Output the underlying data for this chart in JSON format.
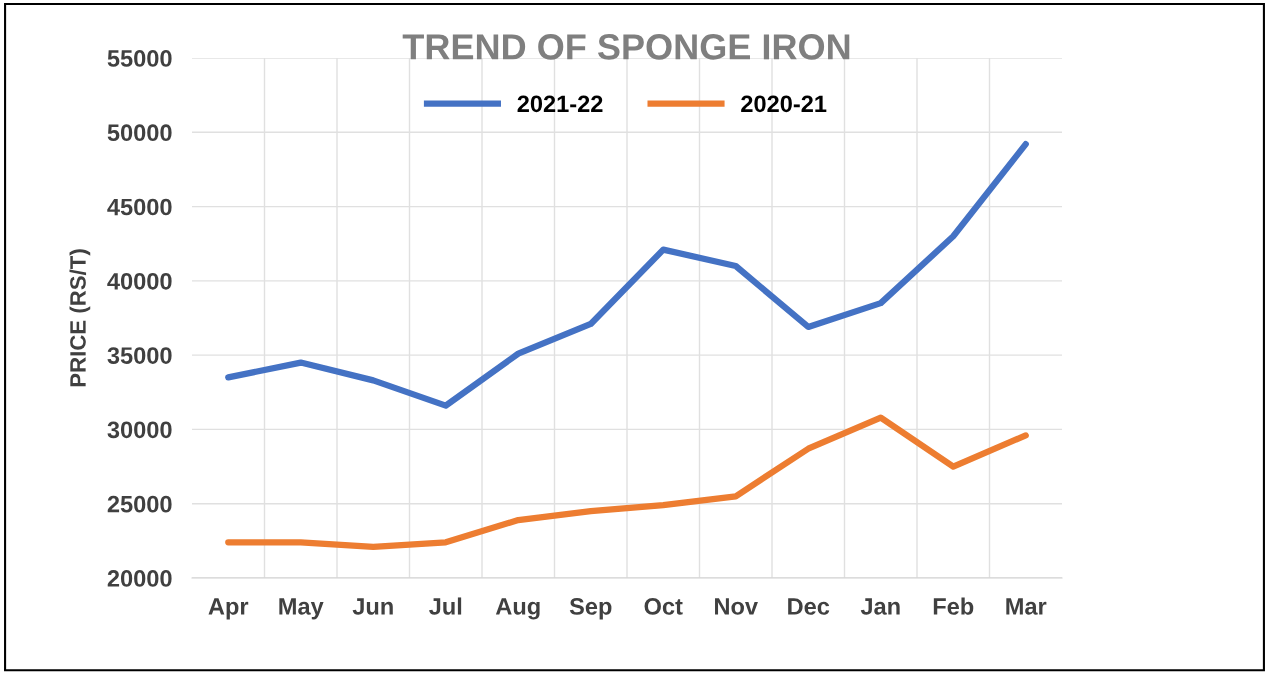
{
  "chart_data": {
    "type": "line",
    "title": "TREND OF SPONGE IRON",
    "ylabel": "PRICE (RS/T)",
    "categories": [
      "Apr",
      "May",
      "Jun",
      "Jul",
      "Aug",
      "Sep",
      "Oct",
      "Nov",
      "Dec",
      "Jan",
      "Feb",
      "Mar"
    ],
    "series": [
      {
        "name": "2021-22",
        "color": "#4472c4",
        "values": [
          33500,
          34500,
          33300,
          31600,
          35100,
          37100,
          42100,
          41000,
          36900,
          38500,
          43000,
          49200
        ]
      },
      {
        "name": "2020-21",
        "color": "#ed7d31",
        "values": [
          22400,
          22400,
          22100,
          22400,
          23900,
          24500,
          24900,
          25500,
          28700,
          30800,
          27500,
          29600
        ]
      }
    ],
    "ylim": [
      20000,
      55000
    ],
    "yticks": [
      20000,
      25000,
      30000,
      35000,
      40000,
      45000,
      50000,
      55000
    ],
    "grid": true,
    "legend": "top",
    "marker": "none",
    "line_style": "solid"
  }
}
